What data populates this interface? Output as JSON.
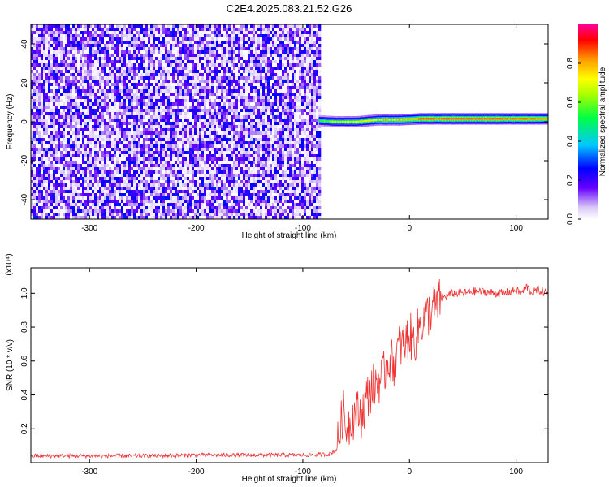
{
  "figure": {
    "title": "C2E4.2025.083.21.52.G26"
  },
  "chart_data": [
    {
      "type": "heatmap",
      "xlabel": "Height of straight line (km)",
      "ylabel": "Frequency (Hz)",
      "xlim": [
        -355,
        130
      ],
      "ylim": [
        -50,
        50
      ],
      "xticks": [
        -300,
        -200,
        -100,
        0,
        100
      ],
      "yticks": [
        -40,
        -20,
        0,
        20,
        40
      ],
      "noise_region": {
        "x": [
          -355,
          -85
        ],
        "y": [
          -50,
          50
        ]
      },
      "signal_band": {
        "points": [
          {
            "x": -85,
            "y": 0.5,
            "amplitude": 0.6
          },
          {
            "x": -70,
            "y": 0,
            "amplitude": 0.7
          },
          {
            "x": -50,
            "y": 0,
            "amplitude": 0.75
          },
          {
            "x": -30,
            "y": 1,
            "amplitude": 0.8
          },
          {
            "x": -10,
            "y": 1,
            "amplitude": 0.85
          },
          {
            "x": 10,
            "y": 1.5,
            "amplitude": 0.95
          },
          {
            "x": 40,
            "y": 1.5,
            "amplitude": 1.0
          },
          {
            "x": 70,
            "y": 1.5,
            "amplitude": 1.0
          },
          {
            "x": 100,
            "y": 1.5,
            "amplitude": 0.95
          },
          {
            "x": 130,
            "y": 1.5,
            "amplitude": 0.9
          }
        ]
      },
      "colorbar": {
        "label": "Normalized spectral amplitude",
        "range": [
          0,
          1
        ],
        "ticks": [
          "0.0",
          "0.2",
          "0.4",
          "0.6",
          "0.8"
        ]
      }
    },
    {
      "type": "line",
      "xlabel": "Height of straight line (km)",
      "ylabel": "SNR (10 * v/v)",
      "multiplier": "(x10⁴)",
      "xlim": [
        -355,
        130
      ],
      "ylim": [
        0,
        1.15
      ],
      "xticks": [
        -300,
        -200,
        -100,
        0,
        100
      ],
      "yticks": [
        "0.2",
        "0.4",
        "0.6",
        "0.8",
        "1.0"
      ],
      "color": "#ee3333",
      "series": [
        {
          "x": [
            -355,
            -300,
            -250,
            -200,
            -150,
            -100,
            -75,
            -68,
            -65,
            -62,
            -60,
            -55,
            -50,
            -45,
            -40,
            -35,
            -30,
            -25,
            -20,
            -15,
            -10,
            -5,
            0,
            5,
            10,
            15,
            20,
            25,
            30,
            40,
            50,
            60,
            70,
            80,
            90,
            100,
            105,
            110,
            115,
            120,
            130
          ],
          "y": [
            0.04,
            0.04,
            0.04,
            0.045,
            0.045,
            0.045,
            0.05,
            0.08,
            0.2,
            0.3,
            0.2,
            0.25,
            0.3,
            0.28,
            0.38,
            0.45,
            0.48,
            0.5,
            0.62,
            0.58,
            0.68,
            0.7,
            0.75,
            0.72,
            0.82,
            0.85,
            0.9,
            0.92,
            0.97,
            1.0,
            1.0,
            1.01,
            1.01,
            1.0,
            1.0,
            1.02,
            1.0,
            1.04,
            1.0,
            1.02,
            1.0
          ]
        }
      ]
    }
  ]
}
